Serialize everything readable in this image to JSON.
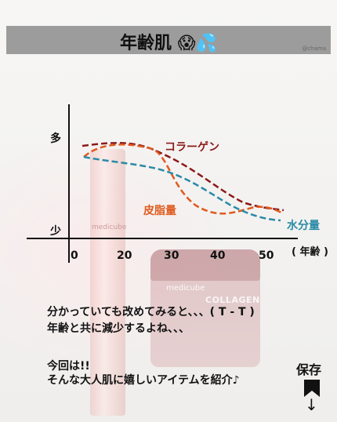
{
  "title": "年齢肌",
  "credit": "@chama",
  "axis": {
    "y_top": "多",
    "y_bottom": "少",
    "x_ticks": [
      "0",
      "20",
      "30",
      "40",
      "50"
    ],
    "x_unit": "( 年齢 )"
  },
  "series": [
    {
      "name": "コラーゲン",
      "color": "#8b1a1a"
    },
    {
      "name": "皮脂量",
      "color": "#e05a1f"
    },
    {
      "name": "水分量",
      "color": "#2a8aa6"
    }
  ],
  "product": {
    "brand": "medicube",
    "jar_text": "COLLAGEN"
  },
  "body": {
    "line1": "分かっていても改めてみると、、、( T - T )",
    "line2": "年齢と共に減少するよね、、、",
    "line3": "今回は!!",
    "line4": "そんな大人肌に嬉しいアイテムを紹介♪"
  },
  "save_label": "保存",
  "save_arrow": "↓"
}
